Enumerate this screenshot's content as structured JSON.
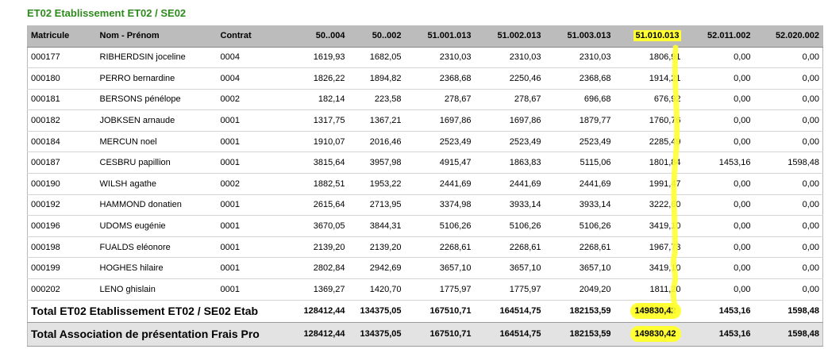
{
  "title": "ET02 Etablissement ET02 / SE02",
  "headers": [
    "Matricule",
    "Nom - Prénom",
    "Contrat",
    "50..004",
    "50..002",
    "51.001.013",
    "51.002.013",
    "51.003.013",
    "51.010.013",
    "52.011.002",
    "52.020.002"
  ],
  "rows": [
    {
      "matricule": "000177",
      "nom": "RIBHERDSIN joceline",
      "contrat": "0004",
      "v": [
        "1619,93",
        "1682,05",
        "2310,03",
        "2310,03",
        "2310,03",
        "1806,91",
        "0,00",
        "0,00"
      ]
    },
    {
      "matricule": "000180",
      "nom": "PERRO bernardine",
      "contrat": "0004",
      "v": [
        "1826,22",
        "1894,82",
        "2368,68",
        "2250,46",
        "2368,68",
        "1914,21",
        "0,00",
        "0,00"
      ]
    },
    {
      "matricule": "000181",
      "nom": "BERSONS pénélope",
      "contrat": "0002",
      "v": [
        "182,14",
        "223,58",
        "278,67",
        "278,67",
        "696,68",
        "676,92",
        "0,00",
        "0,00"
      ]
    },
    {
      "matricule": "000182",
      "nom": "JOBKSEN arnaude",
      "contrat": "0001",
      "v": [
        "1317,75",
        "1367,21",
        "1697,86",
        "1697,86",
        "1879,77",
        "1760,76",
        "0,00",
        "0,00"
      ]
    },
    {
      "matricule": "000184",
      "nom": "MERCUN noel",
      "contrat": "0001",
      "v": [
        "1910,07",
        "2016,46",
        "2523,49",
        "2523,49",
        "2523,49",
        "2285,49",
        "0,00",
        "0,00"
      ]
    },
    {
      "matricule": "000187",
      "nom": "CESBRU papillion",
      "contrat": "0001",
      "v": [
        "3815,64",
        "3957,98",
        "4915,47",
        "1863,83",
        "5115,06",
        "1801,84",
        "1453,16",
        "1598,48"
      ]
    },
    {
      "matricule": "000190",
      "nom": "WILSH agathe",
      "contrat": "0002",
      "v": [
        "1882,51",
        "1953,22",
        "2441,69",
        "2441,69",
        "2441,69",
        "1991,47",
        "0,00",
        "0,00"
      ]
    },
    {
      "matricule": "000192",
      "nom": "HAMMOND donatien",
      "contrat": "0001",
      "v": [
        "2615,64",
        "2713,95",
        "3374,98",
        "3933,14",
        "3933,14",
        "3222,60",
        "0,00",
        "0,00"
      ]
    },
    {
      "matricule": "000196",
      "nom": "UDOMS eugénie",
      "contrat": "0001",
      "v": [
        "3670,05",
        "3844,31",
        "5106,26",
        "5106,26",
        "5106,26",
        "3419,10",
        "0,00",
        "0,00"
      ]
    },
    {
      "matricule": "000198",
      "nom": "FUALDS eléonore",
      "contrat": "0001",
      "v": [
        "2139,20",
        "2139,20",
        "2268,61",
        "2268,61",
        "2268,61",
        "1967,73",
        "0,00",
        "0,00"
      ]
    },
    {
      "matricule": "000199",
      "nom": "HOGHES hilaire",
      "contrat": "0001",
      "v": [
        "2802,84",
        "2942,69",
        "3657,10",
        "3657,10",
        "3657,10",
        "3419,10",
        "0,00",
        "0,00"
      ]
    },
    {
      "matricule": "000202",
      "nom": "LENO ghislain",
      "contrat": "0001",
      "v": [
        "1369,27",
        "1420,70",
        "1775,97",
        "1775,97",
        "2049,20",
        "1811,20",
        "0,00",
        "0,00"
      ]
    }
  ],
  "total_etab": {
    "label": "Total ET02 Etablissement ET02 / SE02 Etab",
    "v": [
      "128412,44",
      "134375,05",
      "167510,71",
      "164514,75",
      "182153,59",
      "149830,42",
      "1453,16",
      "1598,48"
    ]
  },
  "total_assoc": {
    "label": "Total Association de présentation Frais Pro",
    "v": [
      "128412,44",
      "134375,05",
      "167510,71",
      "164514,75",
      "182153,59",
      "149830,42",
      "1453,16",
      "1598,48"
    ]
  },
  "highlight_color": "#ffff33",
  "title_color": "#2f8a1e"
}
